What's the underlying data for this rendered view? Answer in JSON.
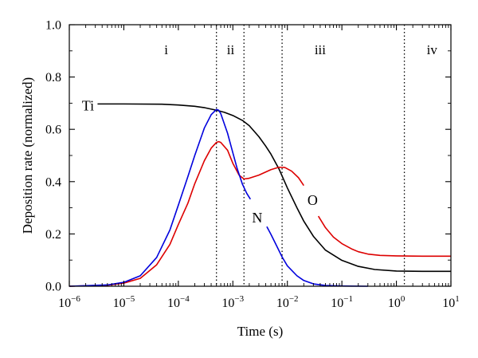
{
  "chart_data": {
    "type": "line",
    "title": "",
    "xlabel": "Time (s)",
    "ylabel": "Deposition rate (normalized)",
    "xscale": "log",
    "xlim": [
      1e-06,
      10
    ],
    "ylim": [
      0,
      1.0
    ],
    "grid": false,
    "legend": "none",
    "xticks": [
      {
        "value": 1e-06,
        "base": "10",
        "exp": "−6"
      },
      {
        "value": 1e-05,
        "base": "10",
        "exp": "−5"
      },
      {
        "value": 0.0001,
        "base": "10",
        "exp": "−4"
      },
      {
        "value": 0.001,
        "base": "10",
        "exp": "−3"
      },
      {
        "value": 0.01,
        "base": "10",
        "exp": "−2"
      },
      {
        "value": 0.1,
        "base": "10",
        "exp": "−1"
      },
      {
        "value": 1,
        "base": "10",
        "exp": "0"
      },
      {
        "value": 10,
        "base": "10",
        "exp": "1"
      }
    ],
    "yticks": [
      {
        "value": 0.0,
        "label": "0.0"
      },
      {
        "value": 0.2,
        "label": "0.2"
      },
      {
        "value": 0.4,
        "label": "0.4"
      },
      {
        "value": 0.6,
        "label": "0.6"
      },
      {
        "value": 0.8,
        "label": "0.8"
      },
      {
        "value": 1.0,
        "label": "1.0"
      }
    ],
    "region_boundaries": [
      0.0005,
      0.0016,
      0.008,
      1.4
    ],
    "regions": [
      {
        "label": "i",
        "x": 6e-05,
        "y": 0.905
      },
      {
        "label": "ii",
        "x": 0.00091,
        "y": 0.905
      },
      {
        "label": "iii",
        "x": 0.04,
        "y": 0.905
      },
      {
        "label": "iv",
        "x": 4.5,
        "y": 0.905
      }
    ],
    "series": [
      {
        "name": "Ti",
        "color": "#000000",
        "label_x": 2.2e-06,
        "label_y": 0.69,
        "segments": [
          [
            [
              3.3e-06,
              0.697
            ],
            [
              1e-05,
              0.697
            ],
            [
              5e-05,
              0.696
            ],
            [
              0.0001,
              0.693
            ],
            [
              0.0002,
              0.688
            ],
            [
              0.0003,
              0.683
            ],
            [
              0.0005,
              0.673
            ],
            [
              0.0007,
              0.665
            ],
            [
              0.001,
              0.653
            ],
            [
              0.0015,
              0.634
            ],
            [
              0.002,
              0.614
            ],
            [
              0.003,
              0.572
            ],
            [
              0.004,
              0.536
            ],
            [
              0.005,
              0.505
            ],
            [
              0.007,
              0.449
            ],
            [
              0.01,
              0.376
            ],
            [
              0.015,
              0.3
            ],
            [
              0.02,
              0.249
            ],
            [
              0.03,
              0.191
            ],
            [
              0.05,
              0.138
            ],
            [
              0.1,
              0.099
            ],
            [
              0.2,
              0.076
            ],
            [
              0.4,
              0.064
            ],
            [
              1,
              0.058
            ],
            [
              3,
              0.057
            ],
            [
              10,
              0.057
            ]
          ]
        ]
      },
      {
        "name": "O",
        "color": "#dd0000",
        "label_x": 0.029,
        "label_y": 0.33,
        "segments": [
          [
            [
              1e-06,
              0.0
            ],
            [
              5e-06,
              0.004
            ],
            [
              1e-05,
              0.012
            ],
            [
              2e-05,
              0.03
            ],
            [
              4e-05,
              0.082
            ],
            [
              7e-05,
              0.16
            ],
            [
              0.0001,
              0.236
            ],
            [
              0.00015,
              0.318
            ],
            [
              0.0002,
              0.392
            ],
            [
              0.0003,
              0.48
            ],
            [
              0.0004,
              0.528
            ],
            [
              0.0005,
              0.55
            ],
            [
              0.00055,
              0.553
            ],
            [
              0.0006,
              0.55
            ],
            [
              0.0008,
              0.52
            ],
            [
              0.001,
              0.47
            ],
            [
              0.0013,
              0.425
            ],
            [
              0.0016,
              0.41
            ],
            [
              0.002,
              0.413
            ],
            [
              0.003,
              0.425
            ],
            [
              0.005,
              0.446
            ],
            [
              0.007,
              0.455
            ],
            [
              0.009,
              0.454
            ],
            [
              0.012,
              0.44
            ],
            [
              0.016,
              0.415
            ],
            [
              0.02,
              0.385
            ]
          ],
          [
            [
              0.037,
              0.268
            ],
            [
              0.05,
              0.224
            ],
            [
              0.07,
              0.188
            ],
            [
              0.1,
              0.163
            ],
            [
              0.15,
              0.143
            ],
            [
              0.2,
              0.132
            ],
            [
              0.3,
              0.123
            ],
            [
              0.5,
              0.118
            ],
            [
              1,
              0.116
            ],
            [
              3,
              0.115
            ],
            [
              10,
              0.115
            ]
          ]
        ]
      },
      {
        "name": "N",
        "color": "#0000dd",
        "label_x": 0.0028,
        "label_y": 0.262,
        "segments": [
          [
            [
              1e-06,
              0.0
            ],
            [
              5e-06,
              0.005
            ],
            [
              1e-05,
              0.015
            ],
            [
              2e-05,
              0.04
            ],
            [
              4e-05,
              0.11
            ],
            [
              7e-05,
              0.215
            ],
            [
              0.0001,
              0.31
            ],
            [
              0.00015,
              0.42
            ],
            [
              0.0002,
              0.5
            ],
            [
              0.0003,
              0.605
            ],
            [
              0.0004,
              0.656
            ],
            [
              0.0005,
              0.676
            ],
            [
              0.00055,
              0.673
            ],
            [
              0.0006,
              0.66
            ],
            [
              0.0008,
              0.585
            ],
            [
              0.001,
              0.51
            ],
            [
              0.0012,
              0.45
            ],
            [
              0.0015,
              0.39
            ],
            [
              0.0018,
              0.355
            ],
            [
              0.0021,
              0.333
            ]
          ],
          [
            [
              0.0042,
              0.228
            ],
            [
              0.005,
              0.198
            ],
            [
              0.006,
              0.165
            ],
            [
              0.008,
              0.112
            ],
            [
              0.01,
              0.078
            ],
            [
              0.015,
              0.04
            ],
            [
              0.02,
              0.022
            ],
            [
              0.03,
              0.009
            ],
            [
              0.05,
              0.003
            ],
            [
              0.1,
              0.001
            ],
            [
              0.3,
              0.0
            ]
          ]
        ]
      }
    ]
  }
}
